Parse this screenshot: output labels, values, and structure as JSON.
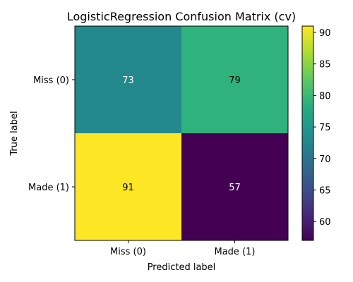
{
  "chart_data": {
    "type": "heatmap",
    "title": "LogisticRegression Confusion Matrix (cv)",
    "xlabel": "Predicted label",
    "ylabel": "True label",
    "x_categories": [
      "Miss (0)",
      "Made (1)"
    ],
    "y_categories": [
      "Miss (0)",
      "Made (1)"
    ],
    "values": [
      [
        73,
        79
      ],
      [
        91,
        57
      ]
    ],
    "colormap": "viridis",
    "colorbar": {
      "min": 57,
      "max": 91,
      "ticks": [
        60,
        65,
        70,
        75,
        80,
        85,
        90
      ],
      "tick_labels": [
        "60",
        "65",
        "70",
        "75",
        "80",
        "85",
        "90"
      ]
    },
    "grid": false
  }
}
